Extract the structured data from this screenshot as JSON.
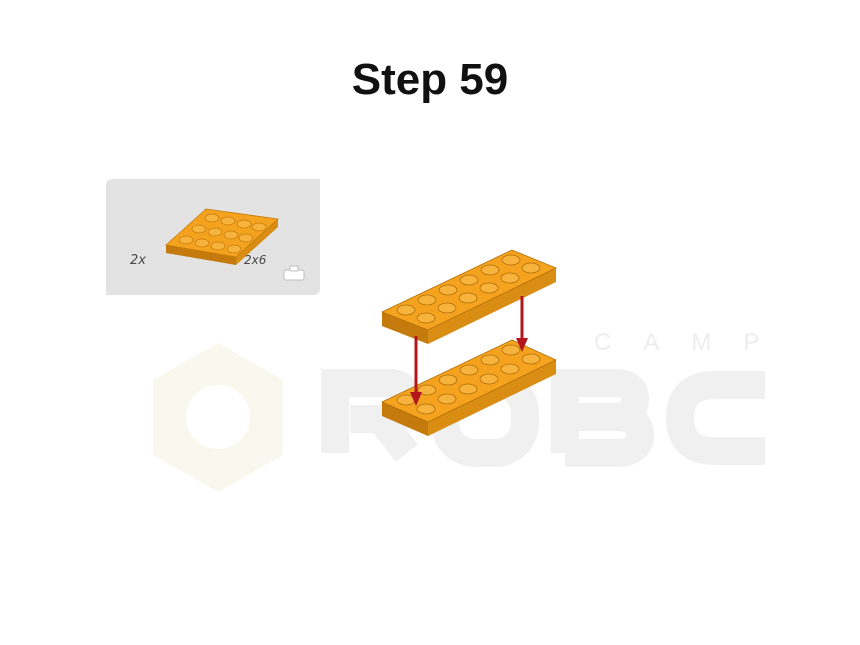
{
  "page": {
    "title": "Step 59"
  },
  "parts_list": {
    "quantity": "2x",
    "size": "2x6",
    "part_icon": "plate-1x1-icon",
    "part_color": "#f5a31e"
  },
  "watermark": {
    "sub_word": "CAMP",
    "logo_icon": "hexagon-icon"
  },
  "assembly": {
    "arrow_color": "#b0161c",
    "arrow_icon": "arrow-down-icon"
  }
}
